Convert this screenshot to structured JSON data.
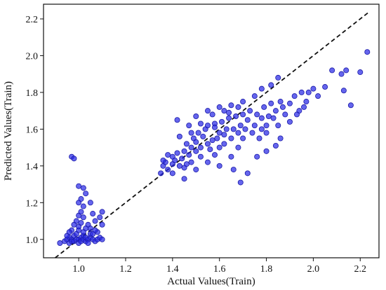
{
  "chart_data": {
    "type": "scatter",
    "title": "",
    "xlabel": "Actual Values(Train)",
    "ylabel": "Predicted Values(Train)",
    "xlim": [
      0.85,
      2.28
    ],
    "ylim": [
      0.9,
      2.28
    ],
    "x_ticks": [
      1.0,
      1.2,
      1.4,
      1.6,
      1.8,
      2.0,
      2.2
    ],
    "y_ticks": [
      1.0,
      1.2,
      1.4,
      1.6,
      1.8,
      2.0,
      2.2
    ],
    "x_tick_labels": [
      "1.0",
      "1.2",
      "1.4",
      "1.6",
      "1.8",
      "2.0",
      "2.2"
    ],
    "y_tick_labels": [
      "1.0",
      "1.2",
      "1.4",
      "1.6",
      "1.8",
      "2.0",
      "2.2"
    ],
    "grid": false,
    "marker_color": "#2a2ae6",
    "reference_line": {
      "style": "dashed",
      "color": "#111111",
      "from": [
        0.9,
        0.9
      ],
      "to": [
        2.24,
        2.24
      ]
    },
    "series": [
      {
        "points": [
          [
            0.92,
            0.98
          ],
          [
            0.94,
            0.99
          ],
          [
            0.95,
            1.0
          ],
          [
            0.96,
            0.98
          ],
          [
            0.96,
            1.01
          ],
          [
            0.97,
            1.0
          ],
          [
            0.97,
            0.99
          ],
          [
            0.98,
            1.02
          ],
          [
            0.98,
            0.99
          ],
          [
            0.99,
            1.0
          ],
          [
            0.99,
            1.03
          ],
          [
            1.0,
            1.0
          ],
          [
            1.0,
            0.98
          ],
          [
            1.0,
            1.05
          ],
          [
            1.01,
            1.01
          ],
          [
            1.01,
            0.99
          ],
          [
            1.02,
            1.0
          ],
          [
            1.02,
            1.02
          ],
          [
            1.03,
            0.99
          ],
          [
            1.03,
            1.01
          ],
          [
            1.04,
            1.0
          ],
          [
            1.04,
            0.98
          ],
          [
            1.05,
            1.01
          ],
          [
            1.05,
            1.03
          ],
          [
            1.06,
            1.0
          ],
          [
            1.07,
            0.99
          ],
          [
            1.08,
            1.0
          ],
          [
            1.09,
            1.01
          ],
          [
            1.1,
            1.0
          ],
          [
            1.0,
            1.07
          ],
          [
            1.01,
            1.09
          ],
          [
            1.02,
            1.12
          ],
          [
            1.0,
            1.13
          ],
          [
            0.99,
            1.1
          ],
          [
            1.01,
            1.15
          ],
          [
            1.02,
            1.18
          ],
          [
            1.0,
            1.2
          ],
          [
            1.01,
            1.22
          ],
          [
            1.03,
            1.25
          ],
          [
            1.02,
            1.28
          ],
          [
            1.0,
            1.29
          ],
          [
            1.05,
            1.2
          ],
          [
            1.06,
            1.14
          ],
          [
            1.07,
            1.1
          ],
          [
            1.04,
            1.08
          ],
          [
            0.97,
            1.05
          ],
          [
            0.98,
            1.08
          ],
          [
            1.03,
            1.06
          ],
          [
            1.05,
            1.06
          ],
          [
            1.08,
            1.04
          ],
          [
            1.09,
            1.12
          ],
          [
            0.97,
            1.45
          ],
          [
            0.98,
            1.44
          ],
          [
            1.1,
            1.15
          ],
          [
            1.1,
            1.08
          ],
          [
            1.02,
            1.04
          ],
          [
            0.95,
            1.02
          ],
          [
            0.96,
            1.04
          ],
          [
            1.06,
            1.03
          ],
          [
            1.07,
            1.05
          ],
          [
            1.35,
            1.36
          ],
          [
            1.36,
            1.4
          ],
          [
            1.37,
            1.42
          ],
          [
            1.38,
            1.38
          ],
          [
            1.4,
            1.41
          ],
          [
            1.4,
            1.45
          ],
          [
            1.41,
            1.43
          ],
          [
            1.42,
            1.47
          ],
          [
            1.43,
            1.4
          ],
          [
            1.44,
            1.44
          ],
          [
            1.45,
            1.48
          ],
          [
            1.45,
            1.39
          ],
          [
            1.46,
            1.52
          ],
          [
            1.47,
            1.46
          ],
          [
            1.48,
            1.5
          ],
          [
            1.48,
            1.42
          ],
          [
            1.49,
            1.55
          ],
          [
            1.5,
            1.48
          ],
          [
            1.5,
            1.53
          ],
          [
            1.51,
            1.58
          ],
          [
            1.52,
            1.5
          ],
          [
            1.52,
            1.45
          ],
          [
            1.53,
            1.56
          ],
          [
            1.54,
            1.6
          ],
          [
            1.55,
            1.52
          ],
          [
            1.55,
            1.62
          ],
          [
            1.56,
            1.49
          ],
          [
            1.57,
            1.54
          ],
          [
            1.58,
            1.63
          ],
          [
            1.58,
            1.46
          ],
          [
            1.59,
            1.55
          ],
          [
            1.6,
            1.58
          ],
          [
            1.6,
            1.5
          ],
          [
            1.61,
            1.64
          ],
          [
            1.62,
            1.57
          ],
          [
            1.62,
            1.52
          ],
          [
            1.63,
            1.6
          ],
          [
            1.64,
            1.66
          ],
          [
            1.65,
            1.55
          ],
          [
            1.65,
            1.45
          ],
          [
            1.66,
            1.6
          ],
          [
            1.67,
            1.67
          ],
          [
            1.68,
            1.58
          ],
          [
            1.68,
            1.5
          ],
          [
            1.69,
            1.62
          ],
          [
            1.7,
            1.68
          ],
          [
            1.7,
            1.55
          ],
          [
            1.71,
            1.6
          ],
          [
            1.72,
            1.65
          ],
          [
            1.73,
            1.7
          ],
          [
            1.74,
            1.58
          ],
          [
            1.75,
            1.62
          ],
          [
            1.76,
            1.68
          ],
          [
            1.77,
            1.55
          ],
          [
            1.78,
            1.6
          ],
          [
            1.78,
            1.66
          ],
          [
            1.79,
            1.72
          ],
          [
            1.8,
            1.62
          ],
          [
            1.8,
            1.58
          ],
          [
            1.81,
            1.67
          ],
          [
            1.82,
            1.74
          ],
          [
            1.83,
            1.66
          ],
          [
            1.84,
            1.7
          ],
          [
            1.85,
            1.62
          ],
          [
            1.86,
            1.75
          ],
          [
            1.87,
            1.72
          ],
          [
            1.88,
            1.68
          ],
          [
            1.9,
            1.74
          ],
          [
            1.92,
            1.78
          ],
          [
            1.94,
            1.7
          ],
          [
            1.95,
            1.8
          ],
          [
            1.97,
            1.75
          ],
          [
            2.0,
            1.82
          ],
          [
            2.02,
            1.78
          ],
          [
            2.05,
            1.83
          ],
          [
            2.08,
            1.92
          ],
          [
            2.12,
            1.9
          ],
          [
            2.14,
            1.92
          ],
          [
            2.16,
            1.73
          ],
          [
            2.13,
            1.81
          ],
          [
            2.2,
            1.91
          ],
          [
            2.23,
            2.02
          ],
          [
            1.82,
            1.84
          ],
          [
            1.85,
            1.88
          ],
          [
            1.6,
            1.72
          ],
          [
            1.55,
            1.7
          ],
          [
            1.5,
            1.67
          ],
          [
            1.47,
            1.62
          ],
          [
            1.43,
            1.56
          ],
          [
            1.42,
            1.65
          ],
          [
            1.52,
            1.63
          ],
          [
            1.57,
            1.68
          ],
          [
            1.62,
            1.7
          ],
          [
            1.65,
            1.73
          ],
          [
            1.7,
            1.75
          ],
          [
            1.4,
            1.36
          ],
          [
            1.38,
            1.46
          ],
          [
            1.36,
            1.43
          ],
          [
            1.45,
            1.33
          ],
          [
            1.5,
            1.38
          ],
          [
            1.55,
            1.42
          ],
          [
            1.6,
            1.4
          ],
          [
            1.66,
            1.38
          ],
          [
            1.69,
            1.31
          ],
          [
            1.72,
            1.36
          ],
          [
            1.76,
            1.45
          ],
          [
            1.8,
            1.48
          ],
          [
            1.84,
            1.51
          ],
          [
            1.86,
            1.55
          ],
          [
            1.9,
            1.64
          ],
          [
            1.93,
            1.68
          ],
          [
            1.96,
            1.72
          ],
          [
            1.98,
            1.8
          ],
          [
            1.75,
            1.78
          ],
          [
            1.78,
            1.82
          ],
          [
            1.68,
            1.72
          ],
          [
            1.64,
            1.69
          ],
          [
            1.58,
            1.61
          ],
          [
            1.48,
            1.58
          ],
          [
            1.46,
            1.41
          ]
        ]
      }
    ]
  }
}
